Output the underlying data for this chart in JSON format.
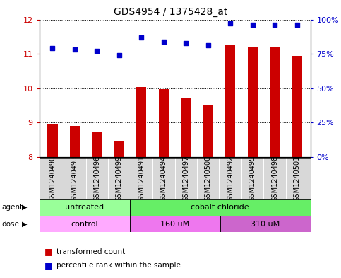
{
  "title": "GDS4954 / 1375428_at",
  "samples": [
    "GSM1240490",
    "GSM1240493",
    "GSM1240496",
    "GSM1240499",
    "GSM1240491",
    "GSM1240494",
    "GSM1240497",
    "GSM1240500",
    "GSM1240492",
    "GSM1240495",
    "GSM1240498",
    "GSM1240501"
  ],
  "bar_values": [
    8.95,
    8.9,
    8.72,
    8.47,
    10.03,
    9.97,
    9.73,
    9.52,
    11.25,
    11.2,
    11.2,
    10.95
  ],
  "dot_values": [
    79,
    78,
    77,
    74,
    87,
    84,
    83,
    81,
    97,
    96,
    96,
    96
  ],
  "ylim_left": [
    8,
    12
  ],
  "ylim_right": [
    0,
    100
  ],
  "yticks_left": [
    8,
    9,
    10,
    11,
    12
  ],
  "yticks_right": [
    0,
    25,
    50,
    75,
    100
  ],
  "ytick_labels_right": [
    "0%",
    "25%",
    "50%",
    "75%",
    "100%"
  ],
  "bar_color": "#cc0000",
  "dot_color": "#0000cc",
  "agent_groups": [
    {
      "label": "untreated",
      "start": 0,
      "end": 4,
      "color": "#99ff99"
    },
    {
      "label": "cobalt chloride",
      "start": 4,
      "end": 12,
      "color": "#66ee66"
    }
  ],
  "dose_groups": [
    {
      "label": "control",
      "start": 0,
      "end": 4,
      "color": "#ffaaff"
    },
    {
      "label": "160 uM",
      "start": 4,
      "end": 8,
      "color": "#ee77ee"
    },
    {
      "label": "310 uM",
      "start": 8,
      "end": 12,
      "color": "#cc66cc"
    }
  ],
  "legend_bar_label": "transformed count",
  "legend_dot_label": "percentile rank within the sample",
  "xlabel_fontsize": 7,
  "title_fontsize": 10,
  "bar_width": 0.45
}
